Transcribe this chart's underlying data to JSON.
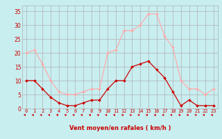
{
  "hours": [
    0,
    1,
    2,
    3,
    4,
    5,
    6,
    7,
    8,
    9,
    10,
    11,
    12,
    13,
    14,
    15,
    16,
    17,
    18,
    19,
    20,
    21,
    22,
    23
  ],
  "wind_avg": [
    10,
    10,
    7,
    4,
    2,
    1,
    1,
    2,
    3,
    3,
    7,
    10,
    10,
    15,
    16,
    17,
    14,
    11,
    6,
    1,
    3,
    1,
    1,
    1
  ],
  "wind_gust": [
    20,
    21,
    16,
    10,
    6,
    5,
    5,
    6,
    7,
    7,
    20,
    21,
    28,
    28,
    30,
    34,
    34,
    26,
    22,
    10,
    7,
    7,
    5,
    7
  ],
  "color_avg": "#cc0000",
  "color_gust": "#ffaaaa",
  "bg_color": "#c8eef0",
  "grid_color": "#b0b0b0",
  "xlabel": "Vent moyen/en rafales ( km/h )",
  "ylim": [
    0,
    37
  ],
  "yticks": [
    0,
    5,
    10,
    15,
    20,
    25,
    30,
    35
  ],
  "tick_label_color": "#cc0000",
  "axis_label_color": "#cc0000",
  "arrow_color": "#cc0000"
}
